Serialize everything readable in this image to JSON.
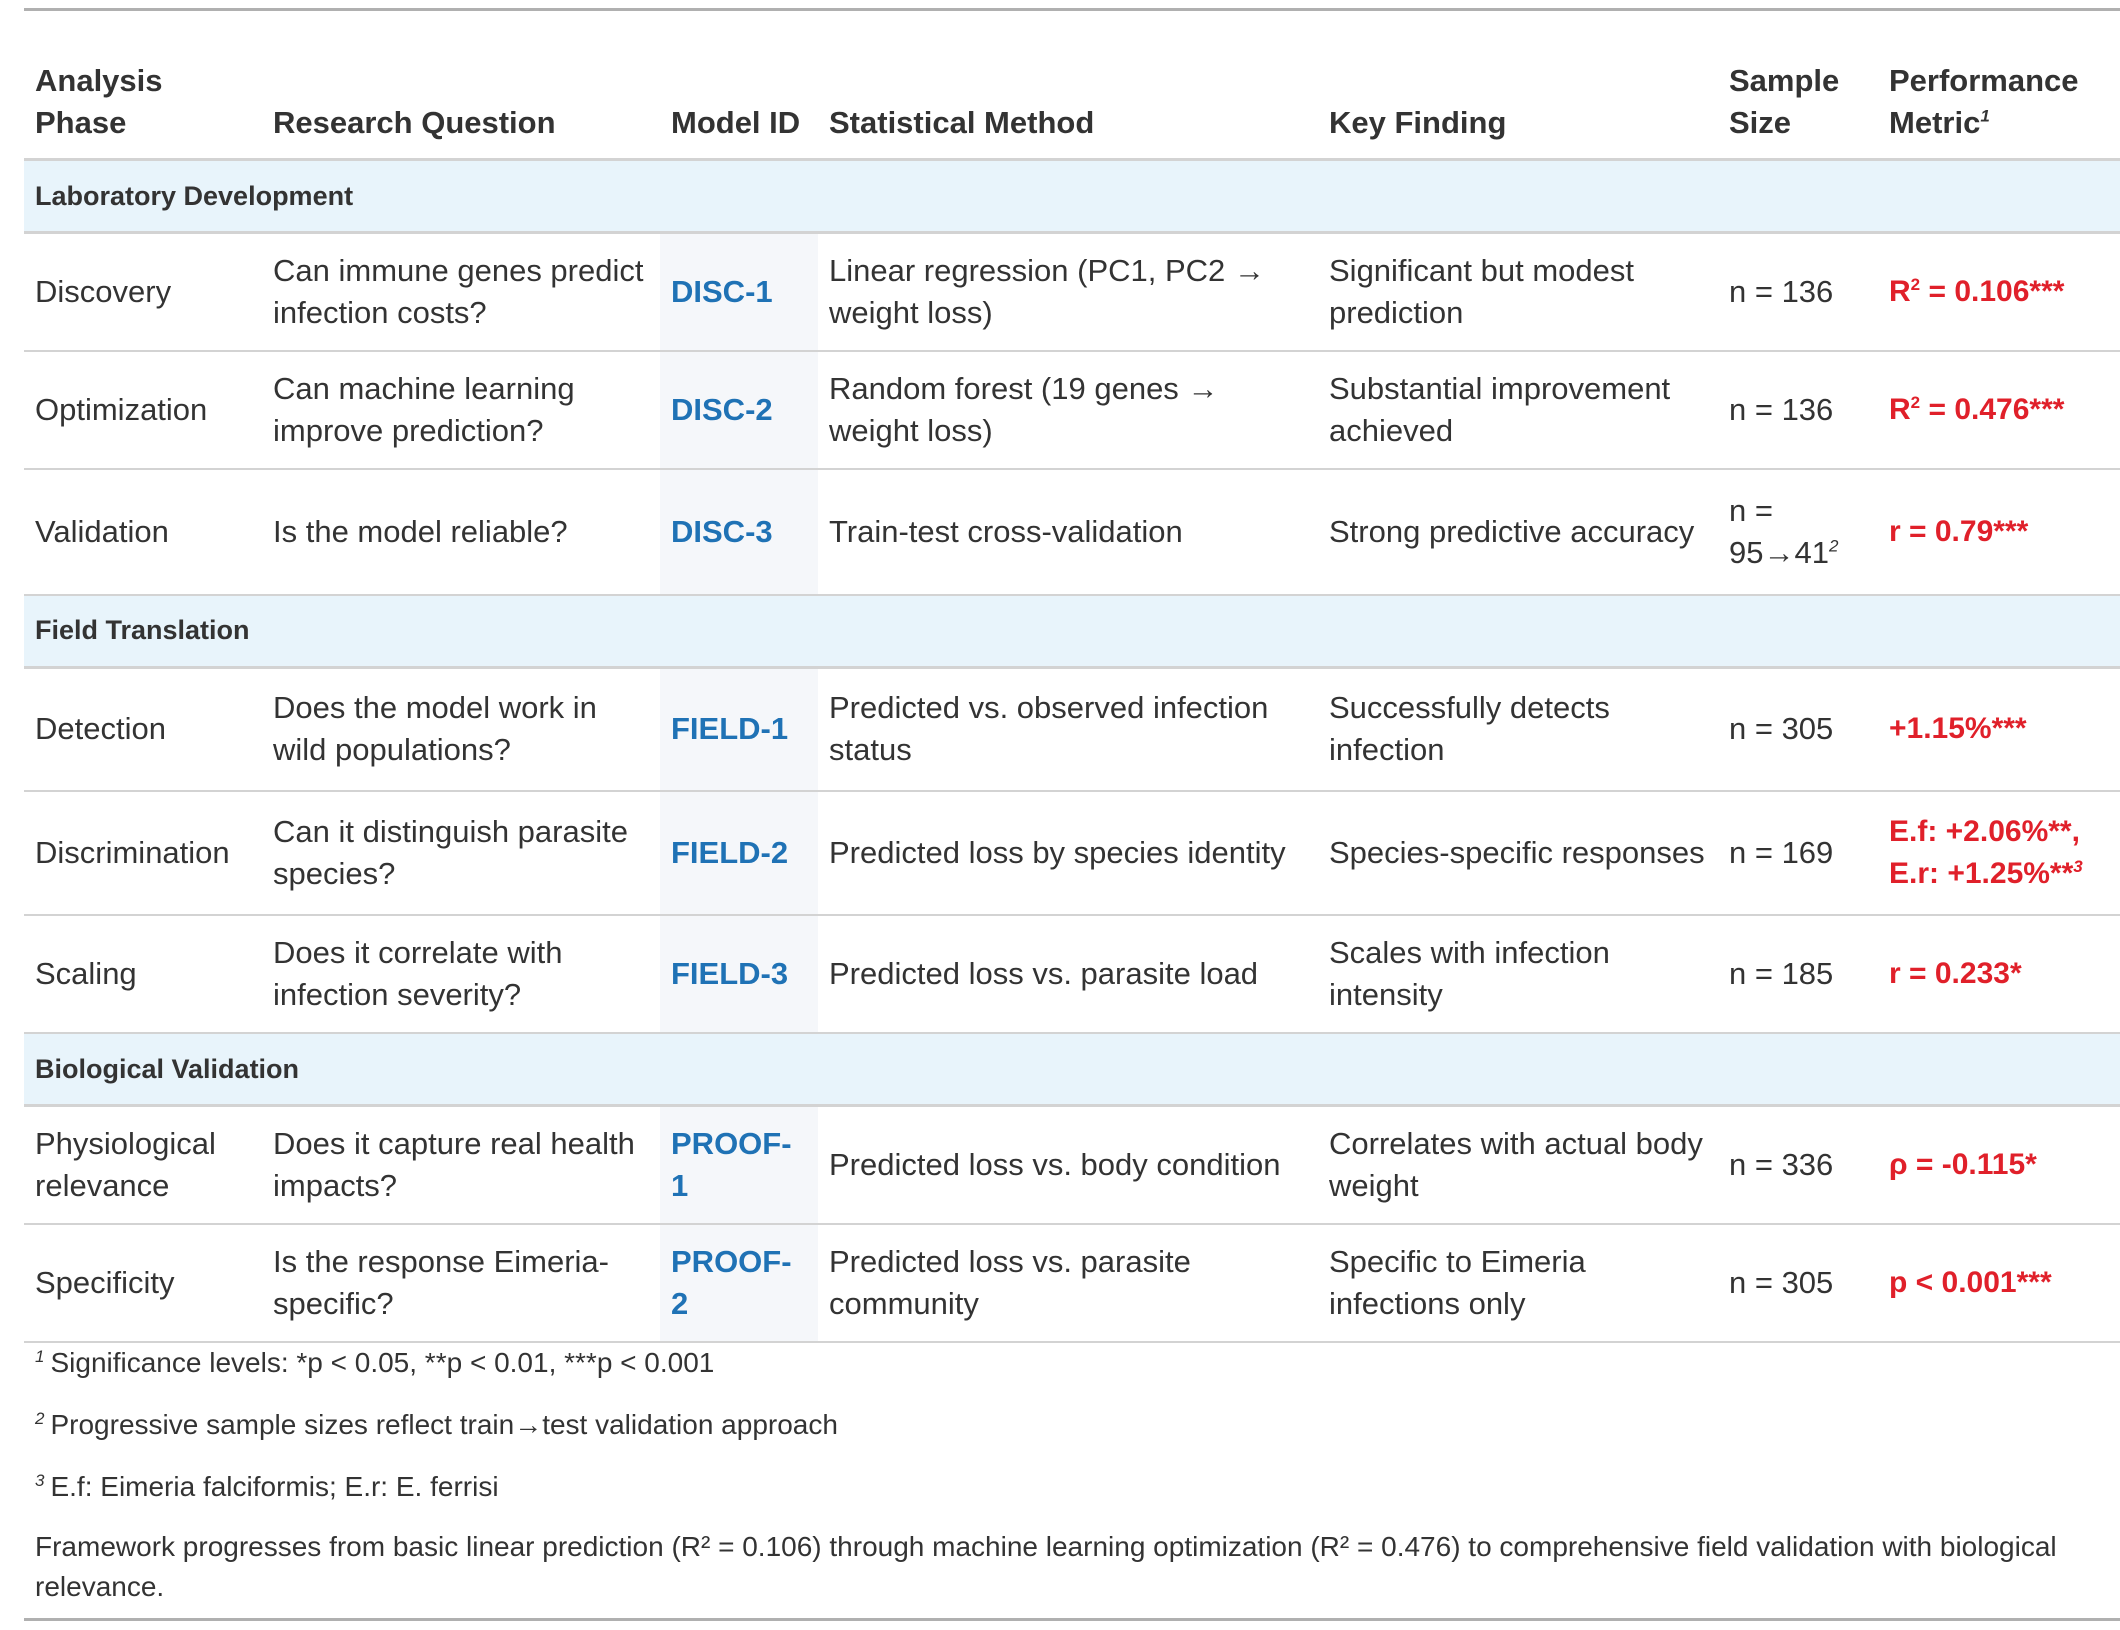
{
  "headers": {
    "phase": "Analysis Phase",
    "question": "Research Question",
    "model": "Model ID",
    "method": "Statistical Method",
    "finding": "Key Finding",
    "sample": "Sample Size",
    "metric": "Performance Metric",
    "metric_footnote_mark": "1"
  },
  "groups": [
    {
      "label": "Laboratory Development",
      "rows": [
        {
          "phase": "Discovery",
          "question": "Can immune genes predict infection costs?",
          "model": "DISC-1",
          "method": "Linear regression (PC1, PC2 → weight loss)",
          "finding": "Significant but modest prediction",
          "sample": "n = 136",
          "metric_pre": "R",
          "metric_sup": "2",
          "metric_post": " = 0.106***"
        },
        {
          "phase": "Optimization",
          "question": "Can machine learning improve prediction?",
          "model": "DISC-2",
          "method": "Random forest (19 genes → weight loss)",
          "finding": "Substantial improvement achieved",
          "sample": "n = 136",
          "metric_pre": "R",
          "metric_sup": "2",
          "metric_post": " = 0.476***"
        },
        {
          "phase": "Validation",
          "question": "Is the model reliable?",
          "model": "DISC-3",
          "method": "Train-test cross-validation",
          "finding": "Strong predictive accuracy",
          "sample": "n = 95→41",
          "sample_sup": "2",
          "metric_pre": "r = 0.79***"
        }
      ]
    },
    {
      "label": "Field Translation",
      "rows": [
        {
          "phase": "Detection",
          "question": "Does the model work in wild populations?",
          "model": "FIELD-1",
          "method": "Predicted vs. observed infection status",
          "finding": "Successfully detects infection",
          "sample": "n = 305",
          "metric_pre": "+1.15%***"
        },
        {
          "phase": "Discrimination",
          "question": "Can it distinguish parasite species?",
          "model": "FIELD-2",
          "method": "Predicted loss by species identity",
          "finding": "Species-specific responses",
          "sample": "n = 169",
          "metric_pre": "E.f: +2.06%**, E.r: +1.25%**",
          "metric_fn": "3"
        },
        {
          "phase": "Scaling",
          "question": "Does it correlate with infection severity?",
          "model": "FIELD-3",
          "method": "Predicted loss vs. parasite load",
          "finding": "Scales with infection intensity",
          "sample": "n = 185",
          "metric_pre": "r = 0.233*"
        }
      ]
    },
    {
      "label": "Biological Validation",
      "rows": [
        {
          "phase": "Physiological relevance",
          "question": "Does it capture real health impacts?",
          "model": "PROOF-1",
          "method": "Predicted loss vs. body condition",
          "finding": "Correlates with actual body weight",
          "sample": "n = 336",
          "metric_pre": "ρ = -0.115*"
        },
        {
          "phase": "Specificity",
          "question": "Is the response Eimeria-specific?",
          "model": "PROOF-2",
          "method": "Predicted loss vs. parasite community",
          "finding": "Specific to Eimeria infections only",
          "sample": "n = 305",
          "metric_pre": "p < 0.001***"
        }
      ]
    }
  ],
  "footnotes": [
    {
      "mark": "1",
      "text": "Significance levels: *p < 0.05, **p < 0.01, ***p < 0.001"
    },
    {
      "mark": "2",
      "text": "Progressive sample sizes reflect train→test validation approach"
    },
    {
      "mark": "3",
      "text": "E.f: Eimeria falciformis; E.r: E. ferrisi"
    }
  ],
  "note": "Framework progresses from basic linear prediction (R² = 0.106) through machine learning optimization (R² = 0.476) to comprehensive field validation with biological relevance."
}
